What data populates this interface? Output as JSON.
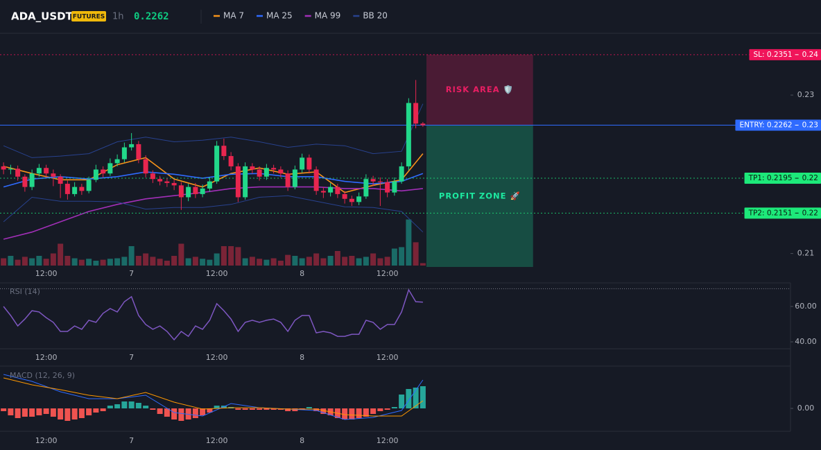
{
  "header": {
    "symbol": "ADA_USDT",
    "market": "FUTURES",
    "interval": "1h",
    "price": 0.2262
  },
  "chart_data": [
    {
      "type": "candlestick",
      "categories": [
        null,
        null,
        null,
        null,
        null,
        null,
        "12:00",
        null,
        null,
        null,
        null,
        null,
        null,
        null,
        null,
        null,
        null,
        null,
        "7",
        null,
        null,
        null,
        null,
        null,
        null,
        null,
        null,
        null,
        null,
        null,
        "12:00",
        null,
        null,
        null,
        null,
        null,
        null,
        null,
        null,
        null,
        null,
        null,
        "8",
        null,
        null,
        null,
        null,
        null,
        null,
        null,
        null,
        null,
        null,
        null,
        "12:00",
        null,
        null,
        null,
        null,
        null
      ],
      "open": [
        0.221,
        0.2206,
        0.2207,
        0.2197,
        0.2184,
        0.2201,
        0.2208,
        0.2201,
        0.2197,
        0.2188,
        0.2175,
        0.2184,
        0.2179,
        0.2193,
        0.2206,
        0.2201,
        0.2214,
        0.2219,
        0.2234,
        0.2238,
        0.2219,
        0.2201,
        0.2194,
        0.2191,
        0.2189,
        0.2186,
        0.2171,
        0.2184,
        0.2175,
        0.2182,
        0.2191,
        0.2236,
        0.2223,
        0.221,
        0.2171,
        0.221,
        0.2206,
        0.2197,
        0.2208,
        0.2206,
        0.2201,
        0.2184,
        0.2206,
        0.2221,
        0.2206,
        0.2179,
        0.2177,
        0.2184,
        0.2175,
        0.2169,
        0.2165,
        0.2172,
        0.2194,
        0.2191,
        0.219,
        0.2177,
        0.2191,
        0.221,
        0.229,
        0.2264
      ],
      "high": [
        0.2215,
        0.2212,
        0.2211,
        0.22,
        0.2206,
        0.2213,
        0.2212,
        0.2206,
        0.22,
        0.2192,
        0.219,
        0.2188,
        0.2197,
        0.2212,
        0.221,
        0.222,
        0.2225,
        0.224,
        0.2252,
        0.2242,
        0.2224,
        0.2205,
        0.2198,
        0.2195,
        0.2193,
        0.219,
        0.2188,
        0.2189,
        0.2187,
        0.2196,
        0.2242,
        0.2245,
        0.2228,
        0.2214,
        0.2215,
        0.2214,
        0.221,
        0.2213,
        0.2212,
        0.221,
        0.2205,
        0.2211,
        0.2226,
        0.2225,
        0.221,
        0.2184,
        0.2189,
        0.2188,
        0.2179,
        0.2173,
        0.2177,
        0.22,
        0.2198,
        0.2196,
        0.2194,
        0.2196,
        0.2215,
        0.2296,
        0.2319,
        0.2266
      ],
      "low": [
        0.22,
        0.22,
        0.2192,
        0.2178,
        0.218,
        0.2197,
        0.2197,
        0.2185,
        0.217,
        0.2168,
        0.2172,
        0.2174,
        0.2176,
        0.219,
        0.2196,
        0.2198,
        0.221,
        0.2215,
        0.223,
        0.2214,
        0.2196,
        0.2189,
        0.2186,
        0.2184,
        0.218,
        0.2155,
        0.2166,
        0.217,
        0.2171,
        0.2178,
        0.2188,
        0.2218,
        0.2205,
        0.2165,
        0.2168,
        0.2201,
        0.2192,
        0.2193,
        0.2201,
        0.2196,
        0.2179,
        0.2181,
        0.2202,
        0.2201,
        0.2174,
        0.217,
        0.2172,
        0.217,
        0.2163,
        0.216,
        0.2161,
        0.2169,
        0.2185,
        0.216,
        0.2171,
        0.2173,
        0.2188,
        0.2205,
        0.2258,
        0.226
      ],
      "close": [
        0.2206,
        0.2207,
        0.2197,
        0.2184,
        0.2201,
        0.2208,
        0.2201,
        0.2197,
        0.2188,
        0.2175,
        0.2184,
        0.2179,
        0.2193,
        0.2206,
        0.2201,
        0.2214,
        0.2219,
        0.2234,
        0.2238,
        0.2219,
        0.2201,
        0.2194,
        0.2191,
        0.2189,
        0.2186,
        0.2171,
        0.2184,
        0.2175,
        0.2182,
        0.2191,
        0.2236,
        0.2223,
        0.221,
        0.2171,
        0.221,
        0.2206,
        0.2197,
        0.2208,
        0.2206,
        0.2201,
        0.2184,
        0.2206,
        0.2221,
        0.2206,
        0.2179,
        0.2177,
        0.2184,
        0.2175,
        0.2169,
        0.2165,
        0.2172,
        0.2194,
        0.2191,
        0.219,
        0.2177,
        0.2191,
        0.221,
        0.229,
        0.2264,
        0.2262
      ],
      "up_color": "#22d88a",
      "down_color": "#e8264f",
      "ylim": [
        0.2083,
        0.2378
      ],
      "yticks": [
        0.21,
        0.23
      ],
      "series": [
        {
          "name": "MA 7",
          "color": "#f7931a",
          "x": [
            0,
            4,
            8,
            12,
            16,
            20,
            24,
            28,
            32,
            36,
            40,
            44,
            48,
            52,
            56,
            59
          ],
          "values": [
            0.221,
            0.2201,
            0.2193,
            0.2193,
            0.2212,
            0.2221,
            0.2194,
            0.2184,
            0.2201,
            0.2208,
            0.22,
            0.2203,
            0.2177,
            0.2186,
            0.2193,
            0.2226
          ]
        },
        {
          "name": "MA 25",
          "color": "#2f6bff",
          "x": [
            0,
            4,
            8,
            12,
            16,
            20,
            24,
            28,
            32,
            36,
            40,
            44,
            48,
            52,
            56,
            59
          ],
          "values": [
            0.2184,
            0.2194,
            0.2197,
            0.2194,
            0.2197,
            0.2203,
            0.22,
            0.2195,
            0.22,
            0.2201,
            0.2197,
            0.2197,
            0.2191,
            0.2188,
            0.2191,
            0.2201
          ]
        },
        {
          "name": "MA 99",
          "color": "#a22fb8",
          "x": [
            0,
            4,
            8,
            12,
            16,
            20,
            24,
            28,
            32,
            36,
            40,
            44,
            48,
            52,
            56,
            59
          ],
          "values": [
            0.2118,
            0.2127,
            0.214,
            0.2153,
            0.2162,
            0.2169,
            0.2173,
            0.2177,
            0.2182,
            0.2184,
            0.2184,
            0.2184,
            0.2182,
            0.2182,
            0.2179,
            0.2182
          ]
        },
        {
          "name": "BB 20",
          "color": "#28428f",
          "x": [
            0,
            4,
            8,
            12,
            16,
            20,
            24,
            28,
            32,
            36,
            40,
            44,
            48,
            52,
            56,
            59
          ],
          "upper": [
            0.2236,
            0.2221,
            0.2223,
            0.2226,
            0.2241,
            0.2247,
            0.2241,
            0.2243,
            0.2247,
            0.2241,
            0.2234,
            0.2238,
            0.2236,
            0.2226,
            0.2229,
            0.2289
          ],
          "lower": [
            0.214,
            0.2171,
            0.2166,
            0.2166,
            0.2165,
            0.2156,
            0.2158,
            0.2158,
            0.2162,
            0.2171,
            0.2173,
            0.2166,
            0.2159,
            0.2158,
            0.2153,
            0.2127
          ]
        }
      ],
      "volume": {
        "values": [
          15,
          20,
          12,
          18,
          15,
          20,
          14,
          25,
          45,
          20,
          15,
          12,
          14,
          10,
          12,
          14,
          15,
          18,
          40,
          20,
          25,
          18,
          14,
          10,
          20,
          45,
          15,
          18,
          14,
          12,
          25,
          40,
          40,
          38,
          15,
          18,
          14,
          12,
          15,
          10,
          22,
          20,
          15,
          18,
          25,
          15,
          20,
          30,
          18,
          20,
          15,
          18,
          25,
          15,
          18,
          35,
          38,
          95,
          48,
          5
        ],
        "vlim": [
          0,
          100
        ],
        "up_color": "#1a6b67",
        "down_color": "#7a2437"
      },
      "levels": [
        {
          "label": "SL: 0.2351",
          "value": 0.2351,
          "axis_label": "0.24",
          "color": "#f0145a",
          "text_color": "#ffffff",
          "dash": true
        },
        {
          "label": "ENTRY: 0.2262",
          "value": 0.2262,
          "axis_label": "0.23",
          "color": "#2f6bff",
          "text_color": "#ffffff",
          "dash": false
        },
        {
          "label": "TP1: 0.2195",
          "value": 0.2195,
          "axis_label": "0.22",
          "color": "#1de97a",
          "text_color": "#0b1a10",
          "dash": true
        },
        {
          "label": "TP2: 0.2151",
          "value": 0.2151,
          "axis_label": "0.22",
          "color": "#1de97a",
          "text_color": "#0b1a10",
          "dash": true
        }
      ],
      "zones": [
        {
          "label": "RISK AREA 🛡️",
          "from": 0.2351,
          "to": 0.2262,
          "x": [
            60,
            75
          ],
          "color": "#e91e63"
        },
        {
          "label": "PROFIT ZONE 🚀",
          "from": 0.2262,
          "to": 0.2083,
          "x": [
            60,
            75
          ],
          "color": "#1de9a0"
        }
      ]
    },
    {
      "type": "line",
      "title": "RSI (14)",
      "color": "#7e57c2",
      "values": [
        60,
        54.9,
        49.0,
        52.9,
        57.6,
        56.9,
        53.7,
        51.0,
        45.9,
        45.9,
        49.0,
        47.1,
        52.2,
        51.0,
        56.1,
        58.8,
        56.9,
        62.7,
        65.5,
        54.9,
        49.8,
        47.1,
        49.0,
        45.9,
        41.2,
        45.9,
        43.1,
        49.0,
        47.1,
        52.2,
        61.6,
        57.6,
        52.9,
        45.9,
        51.0,
        52.2,
        51.0,
        52.2,
        52.9,
        51.0,
        45.9,
        52.2,
        54.9,
        54.9,
        45.1,
        45.9,
        45.1,
        43.1,
        43.1,
        44.3,
        44.3,
        52.2,
        51.0,
        47.1,
        49.8,
        49.8,
        56.9,
        69.4,
        62.7,
        62.4
      ],
      "ylim": [
        36.1,
        73.3
      ],
      "yticks": [
        {
          "value": 60,
          "label": "60.00"
        },
        {
          "value": 40,
          "label": "40.00"
        }
      ],
      "levels": [
        70
      ]
    },
    {
      "type": "macd",
      "title": "MACD (12, 26, 9)",
      "positive_color": "#26a69a",
      "negative_color": "#ef5350",
      "histogram": [
        -8e-05,
        -0.0002,
        -0.00028,
        -0.00024,
        -0.00024,
        -0.0002,
        -0.00016,
        -0.00024,
        -0.00032,
        -0.00036,
        -0.00032,
        -0.00028,
        -0.0002,
        -0.00012,
        -8e-05,
        8e-05,
        0.00012,
        0.0002,
        0.0002,
        0.00016,
        8e-05,
        -4e-05,
        -0.00016,
        -0.00024,
        -0.00032,
        -0.00036,
        -0.00032,
        -0.00028,
        -0.0002,
        -0.00012,
        8e-05,
        8e-05,
        4e-05,
        -4e-05,
        -4e-05,
        -4e-05,
        -4e-05,
        -4e-05,
        -4e-05,
        -4e-05,
        -8e-05,
        -8e-05,
        -4e-05,
        4e-05,
        -8e-05,
        -0.00016,
        -0.0002,
        -0.00028,
        -0.00032,
        -0.00032,
        -0.00028,
        -0.00024,
        -0.00016,
        -8e-05,
        -4e-05,
        4e-05,
        0.0004,
        0.00056,
        0.0006,
        0.00064
      ],
      "series": [
        {
          "color": "#2f6bff",
          "x": [
            0,
            4,
            8,
            12,
            16,
            20,
            24,
            28,
            32,
            36,
            40,
            44,
            48,
            52,
            56,
            59
          ],
          "values": [
            0.00098,
            0.00078,
            0.00048,
            0.00028,
            0.00028,
            0.00038,
            -0.00012,
            -0.00022,
            0.00014,
            2e-05,
            -2e-05,
            -6e-05,
            -0.00032,
            -0.00026,
            -6e-05,
            0.00082
          ]
        },
        {
          "color": "#ff9800",
          "x": [
            0,
            4,
            8,
            12,
            16,
            20,
            24,
            28,
            32,
            36,
            40,
            44,
            48,
            52,
            56,
            59
          ],
          "values": [
            0.00088,
            0.00068,
            0.00054,
            0.00038,
            0.00028,
            0.00046,
            0.00018,
            -2e-05,
            2e-05,
            2e-05,
            -2e-05,
            -2e-05,
            -0.00018,
            -0.00022,
            -0.00022,
            0.00022
          ]
        }
      ],
      "ylim": [
        -0.00066,
        0.00118
      ],
      "yticks": [
        {
          "value": 0,
          "label": "0.00"
        }
      ]
    }
  ]
}
